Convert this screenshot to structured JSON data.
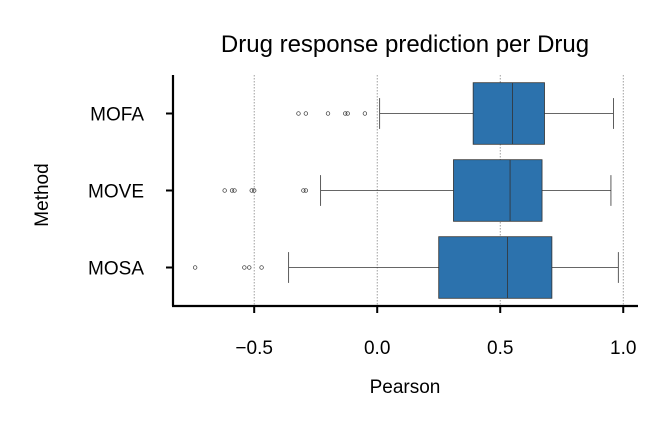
{
  "chart_data": {
    "type": "box",
    "orientation": "horizontal",
    "title": "Drug response prediction per Drug",
    "xlabel": "Pearson",
    "ylabel": "Method",
    "xlim": [
      -0.83,
      1.06
    ],
    "xticks": [
      -0.5,
      0.0,
      0.5,
      1.0
    ],
    "xtick_labels": [
      "−0.5",
      "0.0",
      "0.5",
      "1.0"
    ],
    "grid": "vertical dotted lines at x ticks",
    "box_color": "#2c72ad",
    "categories": [
      "MOFA",
      "MOVE",
      "MOSA"
    ],
    "boxes": [
      {
        "name": "MOFA",
        "whislo": 0.01,
        "q1": 0.39,
        "median": 0.55,
        "q3": 0.68,
        "whishi": 0.96,
        "fliers": [
          -0.32,
          -0.29,
          -0.2,
          -0.13,
          -0.12,
          -0.05
        ]
      },
      {
        "name": "MOVE",
        "whislo": -0.23,
        "q1": 0.31,
        "median": 0.54,
        "q3": 0.67,
        "whishi": 0.95,
        "fliers": [
          -0.62,
          -0.59,
          -0.58,
          -0.51,
          -0.5,
          -0.3,
          -0.29
        ]
      },
      {
        "name": "MOSA",
        "whislo": -0.36,
        "q1": 0.25,
        "median": 0.53,
        "q3": 0.71,
        "whishi": 0.98,
        "fliers": [
          -0.74,
          -0.54,
          -0.52,
          -0.47
        ]
      }
    ]
  }
}
